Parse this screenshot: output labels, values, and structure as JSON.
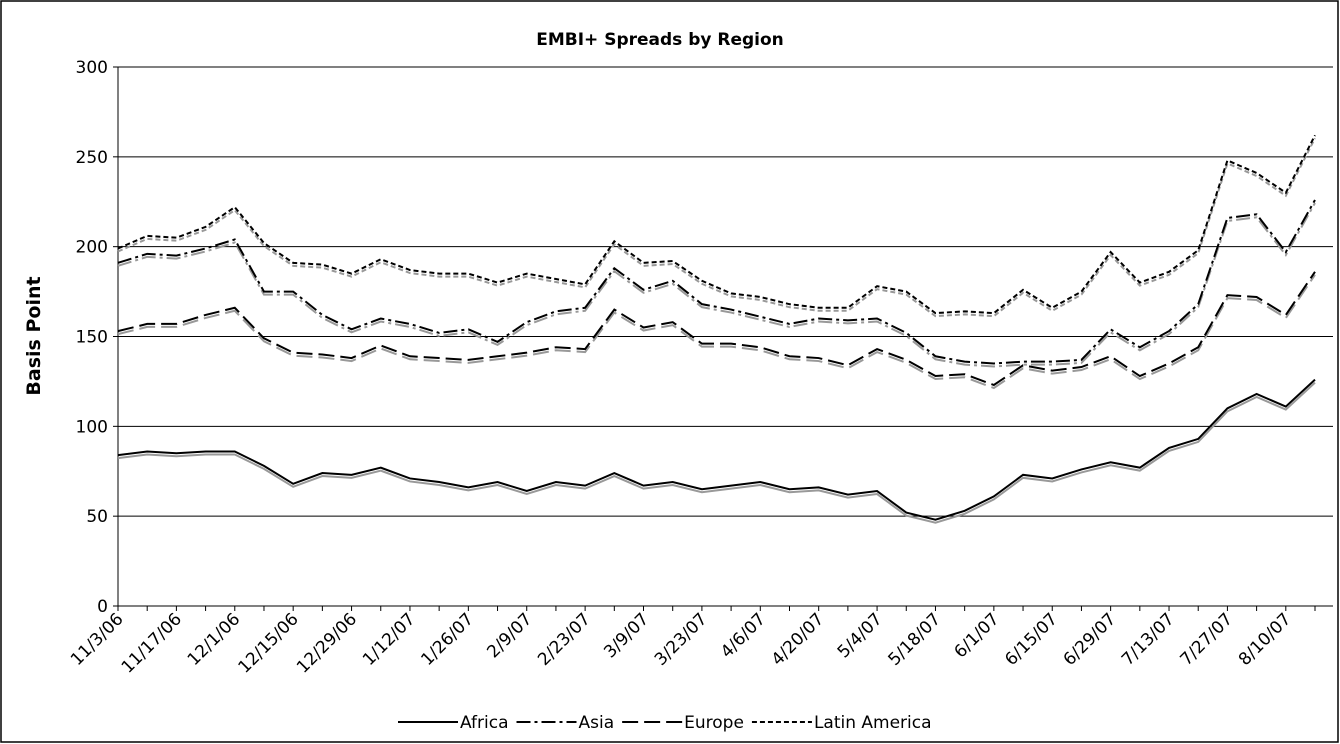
{
  "chart_data": {
    "type": "line",
    "title": "EMBI+ Spreads by Region",
    "y_label": "Basis Point",
    "categories": [
      "11/3/06",
      null,
      "11/17/06",
      null,
      "12/1/06",
      null,
      "12/15/06",
      null,
      "12/29/06",
      null,
      "1/12/07",
      null,
      "1/26/07",
      null,
      "2/9/07",
      null,
      "2/23/07",
      null,
      "3/9/07",
      null,
      "3/23/07",
      null,
      "4/6/07",
      null,
      "4/20/07",
      null,
      "5/4/07",
      null,
      "5/18/07",
      null,
      "6/1/07",
      null,
      "6/15/07",
      null,
      "6/29/07",
      null,
      "7/13/07",
      null,
      "7/27/07",
      null,
      "8/10/07",
      null
    ],
    "series": [
      {
        "name": "Africa",
        "color": "#000000",
        "dash": "solid",
        "values": [
          84,
          86,
          85,
          86,
          86,
          78,
          68,
          74,
          73,
          77,
          71,
          69,
          66,
          69,
          64,
          69,
          67,
          74,
          67,
          69,
          65,
          67,
          69,
          65,
          66,
          62,
          64,
          52,
          48,
          53,
          61,
          73,
          71,
          76,
          80,
          77,
          88,
          93,
          110,
          118,
          111,
          126
        ]
      },
      {
        "name": "Asia",
        "color": "#000000",
        "dash": "dash-dot",
        "values": [
          191,
          196,
          195,
          199,
          204,
          175,
          175,
          162,
          154,
          160,
          157,
          152,
          154,
          147,
          158,
          164,
          166,
          188,
          176,
          181,
          168,
          165,
          161,
          157,
          160,
          159,
          160,
          152,
          139,
          136,
          135,
          136,
          136,
          137,
          154,
          144,
          153,
          168,
          216,
          218,
          197,
          226
        ]
      },
      {
        "name": "Europe",
        "color": "#000000",
        "dash": "long-dash",
        "values": [
          153,
          157,
          157,
          162,
          166,
          149,
          141,
          140,
          138,
          145,
          139,
          138,
          137,
          139,
          141,
          144,
          143,
          165,
          155,
          158,
          146,
          146,
          144,
          139,
          138,
          134,
          143,
          137,
          128,
          129,
          123,
          134,
          131,
          133,
          139,
          128,
          135,
          144,
          173,
          172,
          162,
          186
        ]
      },
      {
        "name": "Latin America",
        "color": "#000000",
        "dash": "short-dash",
        "values": [
          199,
          206,
          205,
          211,
          222,
          202,
          191,
          190,
          185,
          193,
          187,
          185,
          185,
          180,
          185,
          182,
          179,
          203,
          191,
          192,
          181,
          174,
          172,
          168,
          166,
          166,
          178,
          175,
          163,
          164,
          163,
          176,
          166,
          175,
          197,
          180,
          186,
          198,
          248,
          241,
          230,
          262
        ]
      }
    ],
    "ylim": [
      0,
      300
    ],
    "yticks": [
      0,
      50,
      100,
      150,
      200,
      250,
      300
    ],
    "grid": true,
    "legend": "bottom"
  }
}
